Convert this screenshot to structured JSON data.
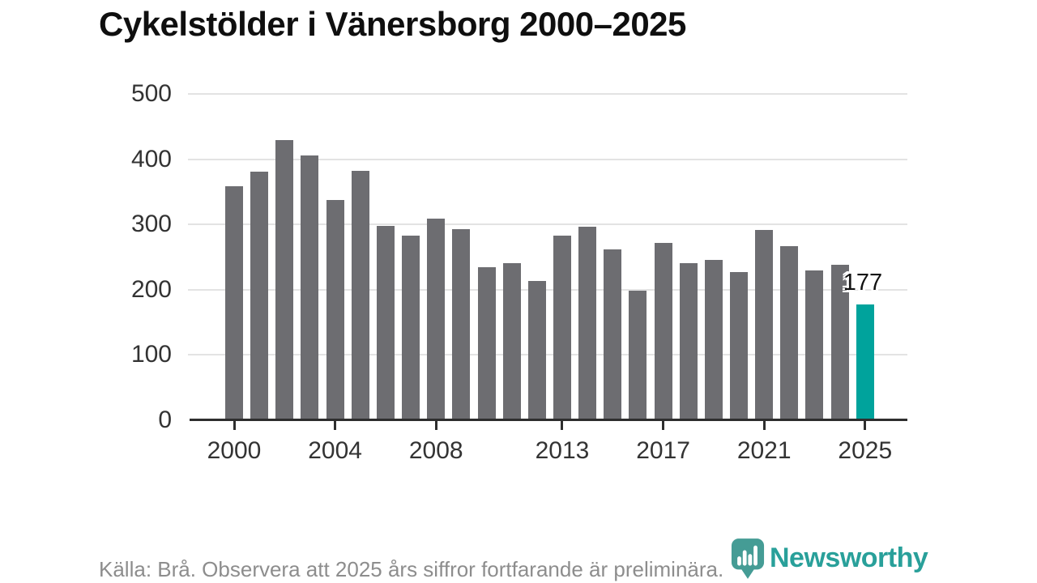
{
  "title": "Cykelstölder i Vänersborg 2000–2025",
  "chart_data": {
    "type": "bar",
    "title": "Cykelstölder i Vänersborg 2000–2025",
    "categories": [
      2000,
      2001,
      2002,
      2003,
      2004,
      2005,
      2006,
      2007,
      2008,
      2009,
      2010,
      2011,
      2012,
      2013,
      2014,
      2015,
      2016,
      2017,
      2018,
      2019,
      2020,
      2021,
      2022,
      2023,
      2024,
      2025
    ],
    "values": [
      358,
      381,
      429,
      406,
      338,
      382,
      298,
      283,
      309,
      293,
      235,
      241,
      214,
      283,
      297,
      262,
      199,
      272,
      241,
      246,
      227,
      291,
      267,
      230,
      238,
      177
    ],
    "xlabel": "",
    "ylabel": "",
    "ylim": [
      0,
      500
    ],
    "yticks": [
      0,
      100,
      200,
      300,
      400,
      500
    ],
    "xticks": [
      2000,
      2004,
      2008,
      2013,
      2017,
      2021,
      2025
    ],
    "grid": true,
    "legend_position": "none",
    "bar_color": "#6d6d71",
    "highlight_year": 2025,
    "highlight_color": "#00a39c",
    "highlight_label": "177",
    "axis_color": "#2e2e2e",
    "gridline_color": "#e3e3e3"
  },
  "footer": {
    "source_text": "Källa: Brå. Observera att 2025 års siffror fortfarande är preliminära."
  },
  "branding": {
    "logo_text": "Newsworthy",
    "logo_color": "#29a09a",
    "pin_color": "#459c95"
  }
}
